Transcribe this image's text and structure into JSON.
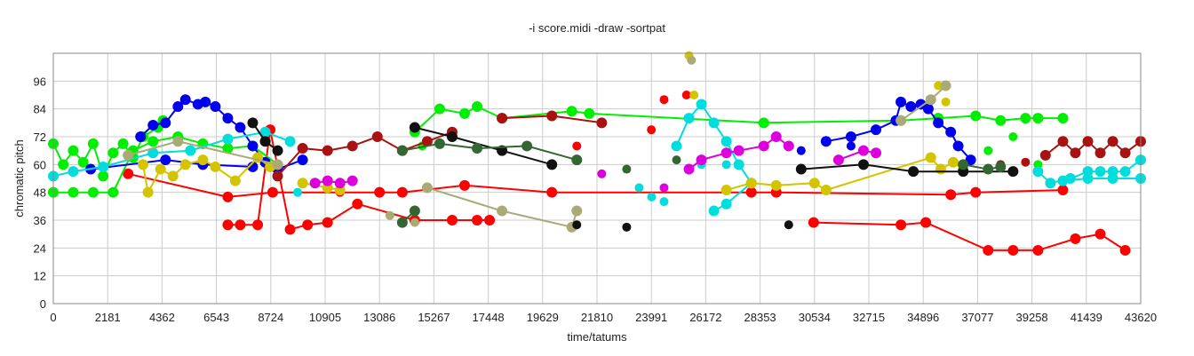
{
  "chart_data": {
    "type": "line",
    "title": "-i score.midi -draw -sortpat",
    "xlabel": "time/tatums",
    "ylabel": "chromatic pitch",
    "xlim": [
      0,
      43620
    ],
    "ylim": [
      0,
      108
    ],
    "x_ticks": [
      "0",
      "2181",
      "4362",
      "6543",
      "8724",
      "10905",
      "13086",
      "15267",
      "17448",
      "19629",
      "21810",
      "23991",
      "26172",
      "28353",
      "30534",
      "32715",
      "34896",
      "37077",
      "39258",
      "41439",
      "43620"
    ],
    "y_ticks": [
      "0",
      "12",
      "24",
      "36",
      "48",
      "60",
      "72",
      "84",
      "96"
    ],
    "grid": true,
    "series": [
      {
        "color": "#ff0000",
        "points": [
          [
            3000,
            56
          ],
          [
            7000,
            46
          ],
          [
            8800,
            48
          ],
          [
            13086,
            48
          ],
          [
            14000,
            48
          ],
          [
            16500,
            51
          ],
          [
            20000,
            48
          ],
          [
            28000,
            48
          ],
          [
            29000,
            48
          ],
          [
            36000,
            47
          ],
          [
            37000,
            48
          ],
          [
            40500,
            49
          ]
        ],
        "points2": [
          [
            7000,
            34
          ],
          [
            7500,
            34
          ],
          [
            8200,
            34
          ],
          [
            8700,
            75
          ],
          [
            9500,
            32
          ],
          [
            10200,
            34
          ],
          [
            11000,
            35
          ],
          [
            12200,
            43
          ],
          [
            14500,
            36
          ],
          [
            16000,
            36
          ],
          [
            17000,
            36
          ],
          [
            17500,
            36
          ]
        ],
        "points3": [
          [
            30500,
            35
          ],
          [
            34000,
            34
          ],
          [
            35000,
            35
          ],
          [
            37500,
            23
          ],
          [
            38500,
            23
          ],
          [
            39500,
            23
          ],
          [
            41000,
            28
          ],
          [
            42000,
            30
          ],
          [
            43000,
            23
          ]
        ],
        "cluster": [
          [
            11500,
            48
          ],
          [
            21000,
            68
          ],
          [
            23991,
            75
          ],
          [
            24500,
            88
          ],
          [
            25400,
            90
          ]
        ]
      },
      {
        "color": "#00ee00",
        "points": [
          [
            0,
            69
          ],
          [
            400,
            60
          ],
          [
            800,
            66
          ],
          [
            1200,
            61
          ],
          [
            1600,
            69
          ],
          [
            2000,
            55
          ],
          [
            2400,
            65
          ],
          [
            2800,
            69
          ],
          [
            3200,
            63
          ],
          [
            3600,
            72
          ],
          [
            4200,
            76
          ],
          [
            4400,
            79
          ]
        ],
        "points2": [
          [
            0,
            48
          ],
          [
            800,
            48
          ],
          [
            1600,
            48
          ],
          [
            2400,
            48
          ],
          [
            3200,
            66
          ],
          [
            4000,
            70
          ],
          [
            5000,
            72
          ],
          [
            6000,
            69
          ],
          [
            7000,
            67
          ],
          [
            8000,
            68
          ],
          [
            9000,
            60
          ]
        ],
        "points3": [
          [
            14500,
            74
          ],
          [
            15500,
            84
          ],
          [
            16500,
            82
          ],
          [
            17000,
            85
          ],
          [
            18000,
            80
          ],
          [
            20800,
            83
          ],
          [
            21500,
            82
          ],
          [
            28500,
            78
          ],
          [
            34000,
            79
          ],
          [
            35500,
            80
          ],
          [
            37000,
            81
          ],
          [
            38000,
            79
          ],
          [
            39000,
            80
          ],
          [
            39500,
            80
          ],
          [
            40500,
            80
          ]
        ],
        "cluster": [
          [
            14800,
            68
          ],
          [
            36500,
            60
          ],
          [
            37500,
            66
          ],
          [
            38500,
            72
          ],
          [
            39500,
            60
          ]
        ]
      },
      {
        "color": "#0000ee",
        "points": [
          [
            3500,
            72
          ],
          [
            4000,
            77
          ],
          [
            4500,
            78
          ],
          [
            5000,
            85
          ],
          [
            5300,
            88
          ],
          [
            5800,
            86
          ],
          [
            6100,
            87
          ],
          [
            6500,
            85
          ],
          [
            7000,
            80
          ],
          [
            7500,
            76
          ],
          [
            8000,
            68
          ],
          [
            8500,
            61
          ],
          [
            9000,
            58
          ],
          [
            10000,
            62
          ]
        ],
        "points2": [
          [
            31000,
            70
          ],
          [
            32000,
            72
          ],
          [
            33000,
            75
          ],
          [
            33800,
            79
          ],
          [
            34000,
            87
          ],
          [
            34400,
            85
          ],
          [
            34800,
            86
          ],
          [
            35100,
            84
          ],
          [
            35500,
            78
          ],
          [
            36000,
            74
          ],
          [
            36300,
            68
          ],
          [
            36800,
            62
          ]
        ],
        "points3": [
          [
            1500,
            58
          ],
          [
            4500,
            62
          ],
          [
            6000,
            60
          ],
          [
            8000,
            59
          ]
        ],
        "cluster": [
          [
            30000,
            66
          ],
          [
            32000,
            68
          ]
        ]
      },
      {
        "color": "#00dddd",
        "points": [
          [
            0,
            55
          ],
          [
            800,
            57
          ],
          [
            2000,
            59
          ],
          [
            4000,
            65
          ],
          [
            5500,
            66
          ],
          [
            7000,
            71
          ],
          [
            8500,
            74
          ],
          [
            9500,
            70
          ]
        ],
        "points2": [
          [
            25000,
            68
          ],
          [
            25500,
            80
          ],
          [
            26000,
            86
          ],
          [
            26500,
            78
          ],
          [
            27000,
            70
          ],
          [
            27500,
            60
          ],
          [
            28000,
            52
          ],
          [
            27000,
            43
          ],
          [
            26500,
            40
          ]
        ],
        "points3": [
          [
            39500,
            57
          ],
          [
            40000,
            52
          ],
          [
            40800,
            54
          ],
          [
            41500,
            57
          ],
          [
            42000,
            57
          ],
          [
            42500,
            57
          ],
          [
            43000,
            57
          ],
          [
            43620,
            62
          ]
        ],
        "points4": [
          [
            40500,
            53
          ],
          [
            41500,
            54
          ],
          [
            42500,
            54
          ],
          [
            43620,
            54
          ]
        ],
        "cluster": [
          [
            23500,
            50
          ],
          [
            24000,
            46
          ],
          [
            24500,
            44
          ],
          [
            9800,
            48
          ],
          [
            11000,
            50
          ],
          [
            26000,
            60
          ],
          [
            27000,
            60
          ]
        ]
      },
      {
        "color": "#d4c400",
        "points": [
          [
            3600,
            60
          ],
          [
            3800,
            48
          ],
          [
            4300,
            58
          ],
          [
            4800,
            55
          ],
          [
            5300,
            60
          ],
          [
            6000,
            62
          ],
          [
            6500,
            59
          ],
          [
            7300,
            53
          ],
          [
            8200,
            63
          ],
          [
            8700,
            59
          ]
        ],
        "points2": [
          [
            10000,
            52
          ],
          [
            11000,
            50
          ],
          [
            11500,
            49
          ]
        ],
        "points3": [
          [
            27000,
            49
          ],
          [
            28000,
            52
          ],
          [
            29000,
            51
          ],
          [
            30534,
            52
          ],
          [
            31000,
            49
          ],
          [
            35200,
            63
          ],
          [
            35600,
            58
          ],
          [
            36100,
            61
          ],
          [
            36500,
            58
          ]
        ],
        "cluster": [
          [
            25500,
            107
          ],
          [
            25700,
            90
          ],
          [
            35500,
            94
          ],
          [
            35800,
            87
          ]
        ]
      },
      {
        "color": "#aaaa77",
        "points": [
          [
            3000,
            64
          ],
          [
            5000,
            70
          ],
          [
            9000,
            60
          ]
        ],
        "points2": [
          [
            15000,
            50
          ],
          [
            18000,
            40
          ],
          [
            20800,
            33
          ],
          [
            21000,
            40
          ]
        ],
        "points3": [
          [
            34000,
            79
          ],
          [
            35200,
            88
          ],
          [
            35800,
            94
          ]
        ],
        "cluster": [
          [
            13500,
            38
          ],
          [
            14500,
            35
          ],
          [
            25600,
            105
          ]
        ]
      },
      {
        "color": "#aa1111",
        "points": [
          [
            9000,
            55
          ],
          [
            10000,
            67
          ],
          [
            11000,
            66
          ],
          [
            12000,
            68
          ],
          [
            13000,
            72
          ],
          [
            14000,
            66
          ],
          [
            15000,
            70
          ],
          [
            16000,
            74
          ]
        ],
        "points2": [
          [
            39800,
            64
          ],
          [
            40500,
            70
          ],
          [
            41000,
            65
          ],
          [
            41500,
            70
          ],
          [
            42000,
            65
          ],
          [
            42500,
            70
          ],
          [
            43000,
            65
          ],
          [
            43620,
            70
          ]
        ],
        "points3": [
          [
            18000,
            80
          ],
          [
            20000,
            81
          ],
          [
            22000,
            78
          ]
        ],
        "cluster": [
          [
            38000,
            60
          ],
          [
            39000,
            61
          ]
        ]
      },
      {
        "color": "#dd00dd",
        "points": [
          [
            10500,
            52
          ],
          [
            11000,
            53
          ],
          [
            11500,
            52
          ],
          [
            12000,
            53
          ]
        ],
        "points2": [
          [
            25500,
            58
          ],
          [
            26000,
            62
          ],
          [
            27000,
            65
          ],
          [
            27500,
            66
          ],
          [
            28500,
            68
          ],
          [
            29000,
            72
          ],
          [
            29500,
            68
          ]
        ],
        "points3": [
          [
            31500,
            62
          ],
          [
            32500,
            66
          ],
          [
            33000,
            65
          ]
        ],
        "cluster": [
          [
            22000,
            56
          ],
          [
            24500,
            50
          ]
        ]
      },
      {
        "color": "#111111",
        "points": [
          [
            8000,
            78
          ],
          [
            8500,
            70
          ],
          [
            9000,
            66
          ]
        ],
        "points2": [
          [
            14500,
            76
          ],
          [
            16000,
            72
          ],
          [
            18000,
            66
          ],
          [
            20000,
            60
          ]
        ],
        "points3": [
          [
            30000,
            58
          ],
          [
            32500,
            60
          ],
          [
            34500,
            57
          ],
          [
            36500,
            57
          ],
          [
            38500,
            57
          ]
        ],
        "cluster": [
          [
            21000,
            34
          ],
          [
            23000,
            33
          ],
          [
            29500,
            34
          ]
        ]
      },
      {
        "color": "#336633",
        "points": [
          [
            14000,
            66
          ],
          [
            15500,
            69
          ],
          [
            17000,
            67
          ],
          [
            19000,
            68
          ],
          [
            21000,
            62
          ]
        ],
        "points2": [
          [
            36500,
            60
          ],
          [
            37500,
            58
          ],
          [
            38000,
            59
          ]
        ],
        "points3": [
          [
            14000,
            35
          ],
          [
            14500,
            40
          ]
        ],
        "cluster": [
          [
            23000,
            58
          ],
          [
            25000,
            62
          ]
        ]
      }
    ]
  }
}
